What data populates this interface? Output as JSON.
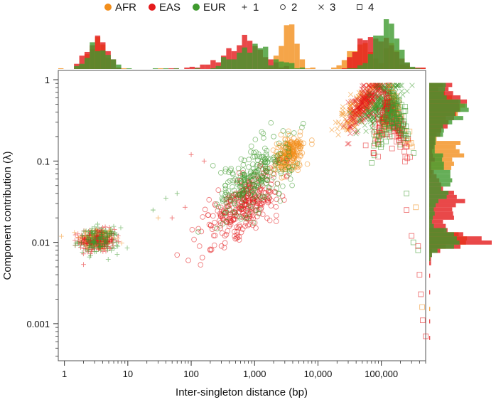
{
  "chart_data": {
    "type": "scatter",
    "title": "",
    "xlabel": "Inter-singleton distance (bp)",
    "ylabel": "Component contribution (λ)",
    "xscale": "log",
    "yscale": "log",
    "xlim": [
      0.8,
      500000
    ],
    "ylim": [
      0.00035,
      1.3
    ],
    "grid": false,
    "legend_position": "top",
    "x_ticks": [
      {
        "value": 1,
        "label": "1"
      },
      {
        "value": 10,
        "label": "10"
      },
      {
        "value": 100,
        "label": "100"
      },
      {
        "value": 1000,
        "label": "1,000"
      },
      {
        "value": 10000,
        "label": "10,000"
      },
      {
        "value": 100000,
        "label": "100,000"
      }
    ],
    "y_ticks": [
      {
        "value": 0.001,
        "label": "0.001"
      },
      {
        "value": 0.01,
        "label": "0.01"
      },
      {
        "value": 0.1,
        "label": "0.1"
      },
      {
        "value": 1,
        "label": "1"
      }
    ],
    "legend": {
      "populations": [
        {
          "name": "AFR",
          "color": "#F28E1C"
        },
        {
          "name": "EAS",
          "color": "#E41A1C"
        },
        {
          "name": "EUR",
          "color": "#3E9A2E"
        }
      ],
      "components": [
        {
          "name": "1",
          "marker": "plus"
        },
        {
          "name": "2",
          "marker": "circle"
        },
        {
          "name": "3",
          "marker": "cross"
        },
        {
          "name": "4",
          "marker": "square"
        }
      ]
    },
    "series": [
      {
        "population": "AFR",
        "component": "1",
        "x_center": 3.3,
        "y_center": 0.011,
        "spread_x": 0.14,
        "spread_y": 0.07,
        "n": 150
      },
      {
        "population": "EAS",
        "component": "1",
        "x_center": 3.3,
        "y_center": 0.0105,
        "spread_x": 0.14,
        "spread_y": 0.07,
        "n": 200
      },
      {
        "population": "EUR",
        "component": "1",
        "x_center": 3.5,
        "y_center": 0.0105,
        "spread_x": 0.16,
        "spread_y": 0.08,
        "n": 150
      },
      {
        "population": "AFR",
        "component": "2",
        "x_center": 3500,
        "y_center": 0.12,
        "spread_x": 0.12,
        "spread_y": 0.1,
        "n": 220
      },
      {
        "population": "EAS",
        "component": "2",
        "x_center": 700,
        "y_center": 0.03,
        "spread_x": 0.3,
        "spread_y": 0.18,
        "n": 320
      },
      {
        "population": "EUR",
        "component": "2",
        "x_center": 1000,
        "y_center": 0.06,
        "spread_x": 0.3,
        "spread_y": 0.2,
        "n": 260
      },
      {
        "population": "AFR",
        "component": "3",
        "x_center": 50000,
        "y_center": 0.5,
        "spread_x": 0.16,
        "spread_y": 0.1,
        "n": 180
      },
      {
        "population": "EAS",
        "component": "3",
        "x_center": 60000,
        "y_center": 0.55,
        "spread_x": 0.16,
        "spread_y": 0.12,
        "n": 220
      },
      {
        "population": "EUR",
        "component": "3",
        "x_center": 100000,
        "y_center": 0.5,
        "spread_x": 0.16,
        "spread_y": 0.12,
        "n": 200
      },
      {
        "population": "AFR",
        "component": "4",
        "x_center": 150000,
        "y_center": 0.5,
        "spread_x": 0.12,
        "spread_y": 0.1,
        "n": 100
      },
      {
        "population": "EAS",
        "component": "4",
        "x_center": 130000,
        "y_center": 0.45,
        "spread_x": 0.12,
        "spread_y": 0.12,
        "n": 140
      },
      {
        "population": "EUR",
        "component": "4",
        "x_center": 160000,
        "y_center": 0.45,
        "spread_x": 0.12,
        "spread_y": 0.12,
        "n": 130
      }
    ],
    "outlier_points": [
      {
        "population": "EAS",
        "component": "1",
        "x": 80,
        "y": 0.027
      },
      {
        "population": "EAS",
        "component": "1",
        "x": 100,
        "y": 0.12
      },
      {
        "population": "EAS",
        "component": "1",
        "x": 160,
        "y": 0.1
      },
      {
        "population": "EAS",
        "component": "1",
        "x": 50,
        "y": 0.02
      },
      {
        "population": "EUR",
        "component": "1",
        "x": 40,
        "y": 0.035
      },
      {
        "population": "EUR",
        "component": "1",
        "x": 25,
        "y": 0.025
      },
      {
        "population": "EUR",
        "component": "1",
        "x": 60,
        "y": 0.04
      },
      {
        "population": "AFR",
        "component": "1",
        "x": 30,
        "y": 0.02
      },
      {
        "population": "EAS",
        "component": "2",
        "x": 60,
        "y": 0.007
      },
      {
        "population": "EAS",
        "component": "2",
        "x": 90,
        "y": 0.006
      },
      {
        "population": "EAS",
        "component": "2",
        "x": 150,
        "y": 0.0065
      },
      {
        "population": "EAS",
        "component": "2",
        "x": 200,
        "y": 0.008
      },
      {
        "population": "EAS",
        "component": "2",
        "x": 300,
        "y": 0.009
      },
      {
        "population": "EUR",
        "component": "2",
        "x": 2000,
        "y": 0.2
      },
      {
        "population": "AFR",
        "component": "2",
        "x": 8000,
        "y": 0.18
      },
      {
        "population": "EAS",
        "component": "4",
        "x": 250000,
        "y": 0.025
      },
      {
        "population": "EAS",
        "component": "4",
        "x": 300000,
        "y": 0.012
      },
      {
        "population": "EAS",
        "component": "4",
        "x": 400000,
        "y": 0.004
      },
      {
        "population": "EAS",
        "component": "4",
        "x": 420000,
        "y": 0.0023
      },
      {
        "population": "EAS",
        "component": "4",
        "x": 450000,
        "y": 0.0011
      },
      {
        "population": "EAS",
        "component": "4",
        "x": 500000,
        "y": 0.0007
      },
      {
        "population": "AFR",
        "component": "4",
        "x": 350000,
        "y": 0.027
      },
      {
        "population": "AFR",
        "component": "4",
        "x": 440000,
        "y": 0.0016
      },
      {
        "population": "EUR",
        "component": "4",
        "x": 320000,
        "y": 0.01
      },
      {
        "population": "EUR",
        "component": "4",
        "x": 380000,
        "y": 0.008
      },
      {
        "population": "EAS",
        "component": "4",
        "x": 380000,
        "y": 0.009
      },
      {
        "population": "EUR",
        "component": "4",
        "x": 250000,
        "y": 0.04
      }
    ]
  }
}
